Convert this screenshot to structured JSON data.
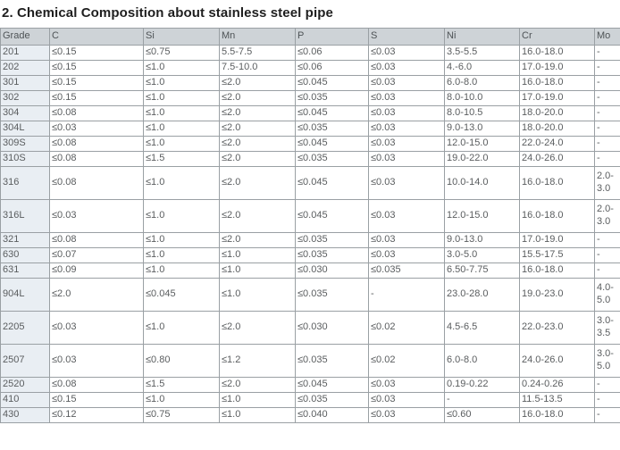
{
  "title": "2. Chemical Composition about stainless steel pipe",
  "table": {
    "columns": [
      "Grade",
      "C",
      "Si",
      "Mn",
      "P",
      "S",
      "Ni",
      "Cr",
      "Mo"
    ],
    "rows": [
      [
        "201",
        "≤0.15",
        "≤0.75",
        "5.5-7.5",
        "≤0.06",
        "≤0.03",
        "3.5-5.5",
        "16.0-18.0",
        "-"
      ],
      [
        "202",
        "≤0.15",
        "≤1.0",
        "7.5-10.0",
        "≤0.06",
        "≤0.03",
        "4.-6.0",
        "17.0-19.0",
        "-"
      ],
      [
        "301",
        "≤0.15",
        "≤1.0",
        "≤2.0",
        "≤0.045",
        "≤0.03",
        "6.0-8.0",
        "16.0-18.0",
        "-"
      ],
      [
        "302",
        "≤0.15",
        "≤1.0",
        "≤2.0",
        "≤0.035",
        "≤0.03",
        "8.0-10.0",
        "17.0-19.0",
        "-"
      ],
      [
        "304",
        "≤0.08",
        "≤1.0",
        "≤2.0",
        "≤0.045",
        "≤0.03",
        "8.0-10.5",
        "18.0-20.0",
        "-"
      ],
      [
        "304L",
        "≤0.03",
        "≤1.0",
        "≤2.0",
        "≤0.035",
        "≤0.03",
        "9.0-13.0",
        "18.0-20.0",
        "-"
      ],
      [
        "309S",
        "≤0.08",
        "≤1.0",
        "≤2.0",
        "≤0.045",
        "≤0.03",
        "12.0-15.0",
        "22.0-24.0",
        "-"
      ],
      [
        "310S",
        "≤0.08",
        "≤1.5",
        "≤2.0",
        "≤0.035",
        "≤0.03",
        "19.0-22.0",
        "24.0-26.0",
        "-"
      ],
      [
        "316",
        "≤0.08",
        "≤1.0",
        "≤2.0",
        "≤0.045",
        "≤0.03",
        "10.0-14.0",
        "16.0-18.0",
        "2.0-3.0"
      ],
      [
        "316L",
        "≤0.03",
        "≤1.0",
        "≤2.0",
        "≤0.045",
        "≤0.03",
        "12.0-15.0",
        "16.0-18.0",
        "2.0-3.0"
      ],
      [
        "321",
        "≤0.08",
        "≤1.0",
        "≤2.0",
        "≤0.035",
        "≤0.03",
        "9.0-13.0",
        "17.0-19.0",
        "-"
      ],
      [
        "630",
        "≤0.07",
        "≤1.0",
        "≤1.0",
        "≤0.035",
        "≤0.03",
        "3.0-5.0",
        "15.5-17.5",
        "-"
      ],
      [
        "631",
        "≤0.09",
        "≤1.0",
        "≤1.0",
        "≤0.030",
        "≤0.035",
        "6.50-7.75",
        "16.0-18.0",
        "-"
      ],
      [
        "904L",
        "≤2.0",
        "≤0.045",
        "≤1.0",
        "≤0.035",
        "-",
        "23.0-28.0",
        "19.0-23.0",
        "4.0-5.0"
      ],
      [
        "2205",
        "≤0.03",
        "≤1.0",
        "≤2.0",
        "≤0.030",
        "≤0.02",
        "4.5-6.5",
        "22.0-23.0",
        "3.0-3.5"
      ],
      [
        "2507",
        "≤0.03",
        "≤0.80",
        "≤1.2",
        "≤0.035",
        "≤0.02",
        "6.0-8.0",
        "24.0-26.0",
        "3.0-5.0"
      ],
      [
        "2520",
        "≤0.08",
        "≤1.5",
        "≤2.0",
        "≤0.045",
        "≤0.03",
        "0.19-0.22",
        "0.24-0.26",
        "-"
      ],
      [
        "410",
        "≤0.15",
        "≤1.0",
        "≤1.0",
        "≤0.035",
        "≤0.03",
        "-",
        "11.5-13.5",
        "-"
      ],
      [
        "430",
        "≤0.12",
        "≤0.75",
        "≤1.0",
        "≤0.040",
        "≤0.03",
        "≤0.60",
        "16.0-18.0",
        "-"
      ]
    ]
  },
  "colors": {
    "header_bg": "#ced3d7",
    "grade_column_bg": "#e9eef3",
    "border": "#9aa0a4",
    "text": "#5a5d5f",
    "title_text": "#1f1f1f"
  }
}
